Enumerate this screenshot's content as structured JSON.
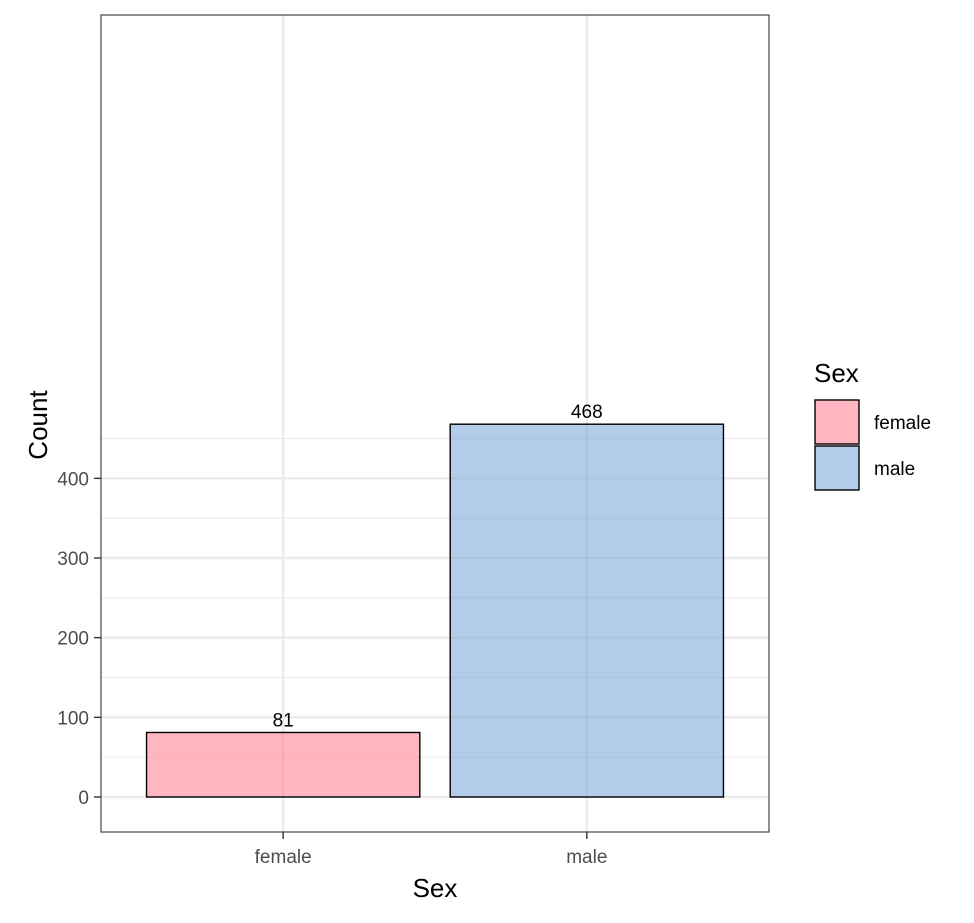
{
  "chart_data": {
    "type": "bar",
    "categories": [
      "female",
      "male"
    ],
    "values": [
      81,
      468
    ],
    "xlabel": "Sex",
    "ylabel": "Count",
    "ylim": [
      0,
      500
    ],
    "yticks": [
      0,
      100,
      200,
      300,
      400
    ],
    "data_labels": [
      "81",
      "468"
    ],
    "grid": true,
    "legend": {
      "title": "Sex",
      "placement": "right",
      "entries": [
        "female",
        "male"
      ]
    },
    "colors": {
      "female": "#ffb6c1",
      "male": "#b2cce9",
      "bar_outline": "#000000",
      "gridline": "#ebebeb",
      "panel_border": "#333333"
    }
  }
}
